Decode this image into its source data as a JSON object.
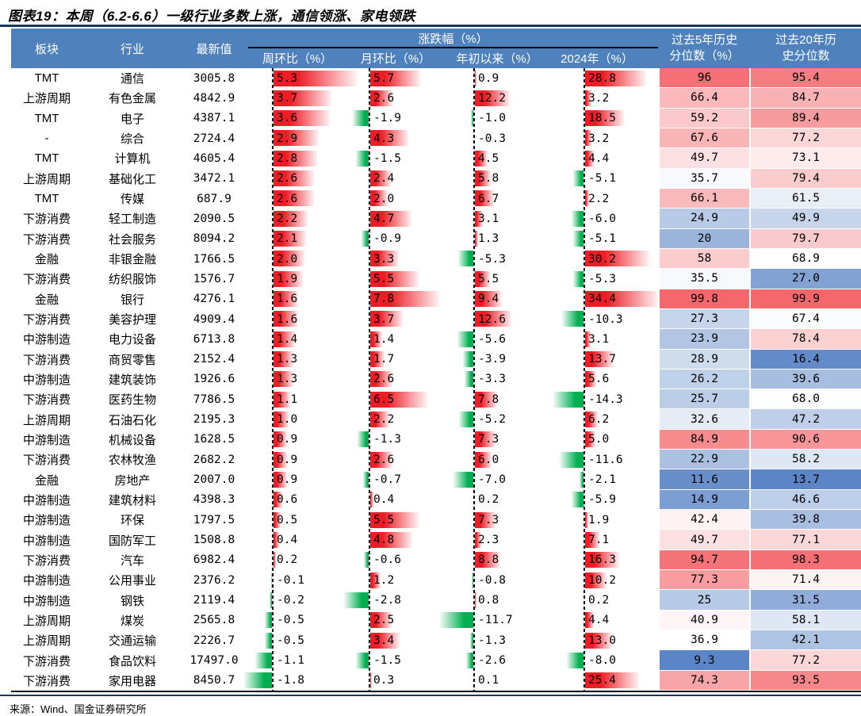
{
  "title": "图表19：本周（6.2-6.6）一级行业多数上涨，通信领涨、家电领跌",
  "source": "来源：Wind、国金证券研究所",
  "table": {
    "headers": {
      "sector": "板块",
      "industry": "行业",
      "latest": "最新值",
      "change_group": "涨跌幅（%）",
      "wow": "周环比（%）",
      "mom": "月环比（%）",
      "ytd": "年初以来（%）",
      "y2024": "2024年（%）",
      "pct5y_line1": "过去5年历史",
      "pct5y_line2": "分位数（%）",
      "pct20y_line1": "过去20年历",
      "pct20y_line2": "史分位数"
    }
  },
  "colors": {
    "header_bg": "#4F81BD",
    "header_text": "#FFFFFF",
    "bar_positive": "#EE1C25",
    "bar_negative": "#00B050",
    "heat_high": "#F4686C",
    "heat_low": "#5B85C6",
    "heat_mid": "#FFFFFF",
    "rule_navy": "#17375E"
  },
  "chart_data": {
    "type": "table",
    "title": "本周（6.2-6.6）一级行业多数上涨，通信领涨、家电领跌",
    "columns": [
      "板块",
      "行业",
      "最新值",
      "周环比（%）",
      "月环比（%）",
      "年初以来（%）",
      "2024年（%）",
      "过去5年历史分位数（%）",
      "过去20年历史分位数"
    ],
    "rows": [
      [
        "TMT",
        "通信",
        "3005.8",
        "5.3",
        "5.7",
        "0.9",
        "28.8",
        "96",
        "95.4"
      ],
      [
        "上游周期",
        "有色金属",
        "4842.9",
        "3.7",
        "2.6",
        "12.2",
        "3.2",
        "66.4",
        "84.7"
      ],
      [
        "TMT",
        "电子",
        "4387.1",
        "3.6",
        "-1.9",
        "-1.0",
        "18.5",
        "59.2",
        "89.4"
      ],
      [
        "-",
        "综合",
        "2724.4",
        "2.9",
        "4.3",
        "-0.3",
        "3.2",
        "67.6",
        "77.2"
      ],
      [
        "TMT",
        "计算机",
        "4605.4",
        "2.8",
        "-1.5",
        "4.5",
        "4.4",
        "49.7",
        "73.1"
      ],
      [
        "上游周期",
        "基础化工",
        "3472.1",
        "2.6",
        "2.4",
        "5.8",
        "-5.1",
        "35.7",
        "79.4"
      ],
      [
        "TMT",
        "传媒",
        "687.9",
        "2.6",
        "2.0",
        "6.7",
        "2.2",
        "66.1",
        "61.5"
      ],
      [
        "下游消费",
        "轻工制造",
        "2090.5",
        "2.2",
        "4.7",
        "3.1",
        "-6.0",
        "24.9",
        "49.9"
      ],
      [
        "下游消费",
        "社会服务",
        "8094.2",
        "2.1",
        "-0.9",
        "1.3",
        "-5.1",
        "20",
        "79.7"
      ],
      [
        "金融",
        "非银金融",
        "1766.5",
        "2.0",
        "3.3",
        "-5.3",
        "30.2",
        "58",
        "68.9"
      ],
      [
        "下游消费",
        "纺织服饰",
        "1576.7",
        "1.9",
        "5.5",
        "5.5",
        "-5.3",
        "35.5",
        "27.0"
      ],
      [
        "金融",
        "银行",
        "4276.1",
        "1.6",
        "7.8",
        "9.4",
        "34.4",
        "99.8",
        "99.9"
      ],
      [
        "下游消费",
        "美容护理",
        "4909.4",
        "1.6",
        "3.7",
        "12.6",
        "-10.3",
        "27.3",
        "67.4"
      ],
      [
        "中游制造",
        "电力设备",
        "6713.8",
        "1.4",
        "1.4",
        "-5.6",
        "3.1",
        "23.9",
        "78.4"
      ],
      [
        "下游消费",
        "商贸零售",
        "2152.4",
        "1.3",
        "1.7",
        "-3.9",
        "13.7",
        "28.9",
        "16.4"
      ],
      [
        "中游制造",
        "建筑装饰",
        "1926.6",
        "1.3",
        "2.6",
        "-3.3",
        "5.6",
        "26.2",
        "39.6"
      ],
      [
        "下游消费",
        "医药生物",
        "7786.5",
        "1.1",
        "6.5",
        "7.8",
        "-14.3",
        "25.7",
        "68.0"
      ],
      [
        "上游周期",
        "石油石化",
        "2195.3",
        "1.0",
        "2.2",
        "-5.2",
        "6.2",
        "32.6",
        "47.2"
      ],
      [
        "中游制造",
        "机械设备",
        "1628.5",
        "0.9",
        "-1.3",
        "7.3",
        "5.0",
        "84.9",
        "90.6"
      ],
      [
        "下游消费",
        "农林牧渔",
        "2682.2",
        "0.9",
        "2.6",
        "6.0",
        "-11.6",
        "22.9",
        "58.2"
      ],
      [
        "金融",
        "房地产",
        "2007.0",
        "0.9",
        "-0.7",
        "-7.0",
        "-2.1",
        "11.6",
        "13.7"
      ],
      [
        "中游制造",
        "建筑材料",
        "4398.3",
        "0.6",
        "0.4",
        "0.2",
        "-5.9",
        "14.9",
        "46.6"
      ],
      [
        "中游制造",
        "环保",
        "1797.5",
        "0.5",
        "5.5",
        "7.3",
        "1.9",
        "42.4",
        "39.8"
      ],
      [
        "中游制造",
        "国防军工",
        "1508.8",
        "0.4",
        "4.8",
        "2.3",
        "7.1",
        "49.7",
        "77.1"
      ],
      [
        "下游消费",
        "汽车",
        "6982.4",
        "0.2",
        "-0.6",
        "8.8",
        "16.3",
        "94.7",
        "98.3"
      ],
      [
        "中游制造",
        "公用事业",
        "2376.2",
        "-0.1",
        "1.2",
        "-0.8",
        "10.2",
        "77.3",
        "71.4"
      ],
      [
        "中游制造",
        "钢铁",
        "2119.4",
        "-0.2",
        "-2.8",
        "0.8",
        "0.2",
        "25",
        "31.5"
      ],
      [
        "上游周期",
        "煤炭",
        "2565.8",
        "-0.5",
        "2.5",
        "-11.7",
        "4.4",
        "40.9",
        "58.1"
      ],
      [
        "上游周期",
        "交通运输",
        "2226.7",
        "-0.5",
        "3.4",
        "-1.3",
        "13.0",
        "36.9",
        "42.1"
      ],
      [
        "下游消费",
        "食品饮料",
        "17497.0",
        "-1.1",
        "-1.5",
        "-2.6",
        "-8.0",
        "9.3",
        "77.2"
      ],
      [
        "下游消费",
        "家用电器",
        "8450.7",
        "-1.8",
        "0.3",
        "0.1",
        "25.4",
        "74.3",
        "93.5"
      ]
    ]
  }
}
